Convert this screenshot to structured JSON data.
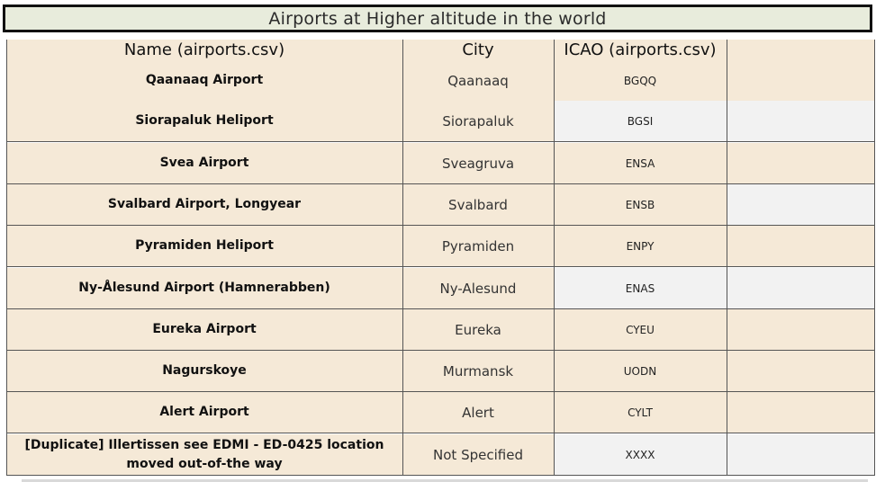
{
  "title": "Airports at Higher altitude in the world",
  "headers": {
    "name": "Name (airports.csv)",
    "city": "City",
    "icao": "ICAO (airports.csv)",
    "extra": ""
  },
  "colors": {
    "beige": "#f5e9d7",
    "gray": "#f2f2f2",
    "title_bg": "#e8ecdc",
    "border": "#555555"
  },
  "rows": [
    {
      "name": "Qaanaaq Airport",
      "city": "Qaanaaq",
      "icao": "BGQQ",
      "icao_shade": "beige",
      "extra_shade": "beige"
    },
    {
      "name": "Siorapaluk Heliport",
      "city": "Siorapaluk",
      "icao": "BGSI",
      "icao_shade": "gray",
      "extra_shade": "gray"
    },
    {
      "name": "Svea Airport",
      "city": "Sveagruva",
      "icao": "ENSA",
      "icao_shade": "beige",
      "extra_shade": "beige"
    },
    {
      "name": "Svalbard Airport, Longyear",
      "city": "Svalbard",
      "icao": "ENSB",
      "icao_shade": "beige",
      "extra_shade": "gray"
    },
    {
      "name": "Pyramiden Heliport",
      "city": "Pyramiden",
      "icao": "ENPY",
      "icao_shade": "beige",
      "extra_shade": "beige"
    },
    {
      "name": "Ny-Ålesund Airport (Hamnerabben)",
      "city": "Ny-Alesund",
      "icao": "ENAS",
      "icao_shade": "gray",
      "extra_shade": "gray"
    },
    {
      "name": "Eureka Airport",
      "city": "Eureka",
      "icao": "CYEU",
      "icao_shade": "beige",
      "extra_shade": "beige"
    },
    {
      "name": "Nagurskoye",
      "city": "Murmansk",
      "icao": "UODN",
      "icao_shade": "beige",
      "extra_shade": "beige"
    },
    {
      "name": "Alert Airport",
      "city": "Alert",
      "icao": "CYLT",
      "icao_shade": "beige",
      "extra_shade": "beige"
    },
    {
      "name": "[Duplicate] Illertissen see EDMI - ED-0425 location moved out-of-the way",
      "city": "Not Specified",
      "icao": "XXXX",
      "icao_shade": "gray",
      "extra_shade": "gray"
    }
  ]
}
